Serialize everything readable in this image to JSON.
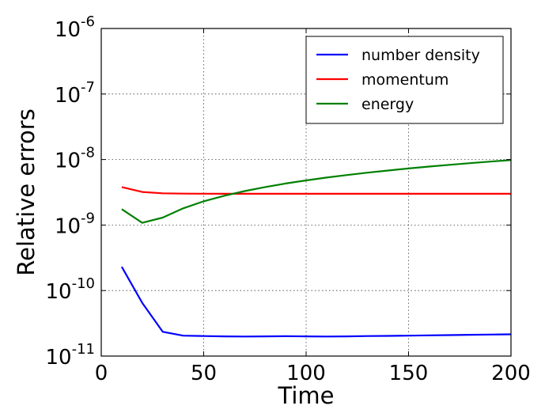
{
  "chart_data": {
    "type": "line",
    "title": "",
    "xlabel": "Time",
    "ylabel": "Relative errors",
    "xlim": [
      0,
      200
    ],
    "ylim": [
      1e-11,
      1e-06
    ],
    "yscale": "log",
    "grid": true,
    "legend_position": "top-right",
    "x_ticks": [
      {
        "value": 0,
        "label": "0"
      },
      {
        "value": 50,
        "label": "50"
      },
      {
        "value": 100,
        "label": "100"
      },
      {
        "value": 150,
        "label": "150"
      },
      {
        "value": 200,
        "label": "200"
      }
    ],
    "y_ticks": [
      {
        "value": 1e-11,
        "base": "10",
        "exp": "-11"
      },
      {
        "value": 1e-10,
        "base": "10",
        "exp": "-10"
      },
      {
        "value": 1e-09,
        "base": "10",
        "exp": "-9"
      },
      {
        "value": 1e-08,
        "base": "10",
        "exp": "-8"
      },
      {
        "value": 1e-07,
        "base": "10",
        "exp": "-7"
      },
      {
        "value": 1e-06,
        "base": "10",
        "exp": "-6"
      }
    ],
    "series": [
      {
        "name": "number density",
        "color": "#0000ff",
        "x": [
          10,
          20,
          30,
          40,
          50,
          60,
          70,
          80,
          90,
          100,
          110,
          120,
          130,
          140,
          150,
          160,
          170,
          180,
          190,
          200
        ],
        "y": [
          2.3e-10,
          6.5e-11,
          2.35e-11,
          2.05e-11,
          2.02e-11,
          2e-11,
          1.99e-11,
          2e-11,
          2.01e-11,
          2e-11,
          1.99e-11,
          2e-11,
          2.02e-11,
          2.03e-11,
          2.05e-11,
          2.07e-11,
          2.09e-11,
          2.11e-11,
          2.13e-11,
          2.15e-11
        ]
      },
      {
        "name": "momentum",
        "color": "#ff0000",
        "x": [
          10,
          20,
          30,
          40,
          50,
          60,
          70,
          80,
          90,
          100,
          110,
          120,
          130,
          140,
          150,
          160,
          170,
          180,
          190,
          200
        ],
        "y": [
          3.8e-09,
          3.2e-09,
          3.05e-09,
          3.02e-09,
          3.01e-09,
          3e-09,
          3e-09,
          3e-09,
          3e-09,
          3e-09,
          3e-09,
          3e-09,
          3e-09,
          3e-09,
          3e-09,
          3e-09,
          3e-09,
          3e-09,
          3e-09,
          3e-09
        ]
      },
      {
        "name": "energy",
        "color": "#008000",
        "x": [
          10,
          20,
          30,
          40,
          50,
          60,
          70,
          80,
          90,
          100,
          110,
          120,
          130,
          140,
          150,
          160,
          170,
          180,
          190,
          200
        ],
        "y": [
          1.75e-09,
          1.08e-09,
          1.3e-09,
          1.8e-09,
          2.3e-09,
          2.8e-09,
          3.3e-09,
          3.8e-09,
          4.3e-09,
          4.8e-09,
          5.3e-09,
          5.8e-09,
          6.3e-09,
          6.8e-09,
          7.3e-09,
          7.8e-09,
          8.3e-09,
          8.8e-09,
          9.3e-09,
          9.8e-09
        ]
      }
    ]
  }
}
